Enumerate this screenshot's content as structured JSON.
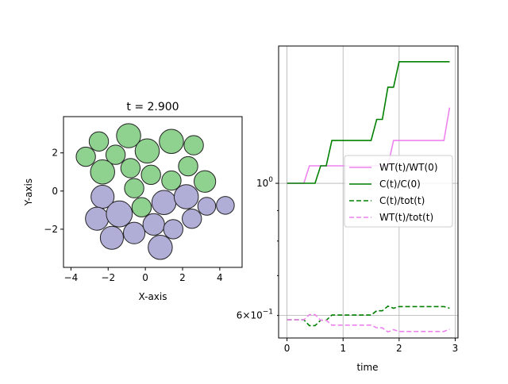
{
  "chart_data": [
    {
      "type": "scatter",
      "title": "t = 2.900",
      "xlabel": "X-axis",
      "ylabel": "Y-axis",
      "xlim": [
        -4.4,
        5.2
      ],
      "ylim": [
        -4.0,
        3.9
      ],
      "xticks": [
        -4,
        -2,
        0,
        2,
        4
      ],
      "yticks": [
        -2,
        0,
        2
      ],
      "grid": false,
      "colors": {
        "green": "#8fd18f",
        "purple": "#b0aed6",
        "edge": "#222222"
      },
      "series": [
        {
          "group": "green",
          "circles": [
            {
              "x": -2.5,
              "y": 2.6,
              "r": 0.52
            },
            {
              "x": -3.2,
              "y": 1.8,
              "r": 0.52
            },
            {
              "x": -1.6,
              "y": 1.9,
              "r": 0.52
            },
            {
              "x": -0.9,
              "y": 2.9,
              "r": 0.65
            },
            {
              "x": 0.1,
              "y": 2.1,
              "r": 0.65
            },
            {
              "x": 1.4,
              "y": 2.6,
              "r": 0.65
            },
            {
              "x": 2.6,
              "y": 2.4,
              "r": 0.52
            },
            {
              "x": -2.3,
              "y": 1.0,
              "r": 0.65
            },
            {
              "x": -0.8,
              "y": 1.2,
              "r": 0.52
            },
            {
              "x": 0.3,
              "y": 0.85,
              "r": 0.52
            },
            {
              "x": 1.4,
              "y": 0.55,
              "r": 0.52
            },
            {
              "x": 2.3,
              "y": 1.3,
              "r": 0.52
            },
            {
              "x": 3.2,
              "y": 0.5,
              "r": 0.58
            },
            {
              "x": -0.6,
              "y": 0.15,
              "r": 0.52
            },
            {
              "x": -0.2,
              "y": -0.85,
              "r": 0.52
            }
          ]
        },
        {
          "group": "purple",
          "circles": [
            {
              "x": -2.3,
              "y": -0.3,
              "r": 0.62
            },
            {
              "x": -2.6,
              "y": -1.45,
              "r": 0.62
            },
            {
              "x": -1.4,
              "y": -1.2,
              "r": 0.7
            },
            {
              "x": -1.8,
              "y": -2.45,
              "r": 0.62
            },
            {
              "x": -0.6,
              "y": -2.2,
              "r": 0.58
            },
            {
              "x": 0.45,
              "y": -1.75,
              "r": 0.58
            },
            {
              "x": 1.0,
              "y": -0.6,
              "r": 0.65
            },
            {
              "x": 1.5,
              "y": -2.0,
              "r": 0.52
            },
            {
              "x": 0.8,
              "y": -2.95,
              "r": 0.65
            },
            {
              "x": 2.2,
              "y": -0.3,
              "r": 0.65
            },
            {
              "x": 2.5,
              "y": -1.45,
              "r": 0.52
            },
            {
              "x": 3.3,
              "y": -0.8,
              "r": 0.48
            },
            {
              "x": 4.3,
              "y": -0.75,
              "r": 0.48
            }
          ]
        }
      ]
    },
    {
      "type": "line",
      "xlabel": "time",
      "ylabel": "",
      "yscale": "log",
      "xlim": [
        -0.15,
        3.05
      ],
      "ylim": [
        0.55,
        1.7
      ],
      "xticks": [
        0,
        1,
        2,
        3
      ],
      "ytick_labels": [
        "10^0",
        "6×10^-1"
      ],
      "grid": true,
      "legend_position": "center-right",
      "series": [
        {
          "name": "WT(t)/WT(0)",
          "color": "#ee82ee",
          "dash": "solid",
          "x": [
            0,
            0.3,
            0.4,
            1.8,
            1.9,
            2.8,
            2.9
          ],
          "y": [
            1.0,
            1.0,
            1.07,
            1.07,
            1.18,
            1.18,
            1.34
          ]
        },
        {
          "name": "C(t)/C(0)",
          "color": "#008000",
          "dash": "solid",
          "x": [
            0,
            0.5,
            0.6,
            0.7,
            0.8,
            1.5,
            1.6,
            1.7,
            1.8,
            1.9,
            2.0,
            2.9
          ],
          "y": [
            1.0,
            1.0,
            1.07,
            1.07,
            1.18,
            1.18,
            1.28,
            1.28,
            1.45,
            1.45,
            1.6,
            1.6
          ]
        },
        {
          "name": "C(t)/tot(t)",
          "color": "#008000",
          "dash": "dashed",
          "x": [
            0,
            0.2,
            0.3,
            0.4,
            0.5,
            0.6,
            0.7,
            0.8,
            1.5,
            1.6,
            1.7,
            1.8,
            1.9,
            2.0,
            2.8,
            2.9
          ],
          "y": [
            0.59,
            0.59,
            0.59,
            0.577,
            0.577,
            0.589,
            0.589,
            0.601,
            0.601,
            0.611,
            0.611,
            0.622,
            0.617,
            0.621,
            0.621,
            0.617
          ]
        },
        {
          "name": "WT(t)/tot(t)",
          "color": "#ee82ee",
          "dash": "dashed",
          "x": [
            0,
            0.2,
            0.3,
            0.4,
            0.5,
            0.6,
            0.7,
            0.8,
            1.5,
            1.6,
            1.7,
            1.8,
            1.9,
            2.0,
            2.8,
            2.9
          ],
          "y": [
            0.59,
            0.59,
            0.59,
            0.602,
            0.602,
            0.589,
            0.589,
            0.578,
            0.578,
            0.572,
            0.572,
            0.563,
            0.568,
            0.564,
            0.564,
            0.569
          ]
        }
      ]
    }
  ]
}
